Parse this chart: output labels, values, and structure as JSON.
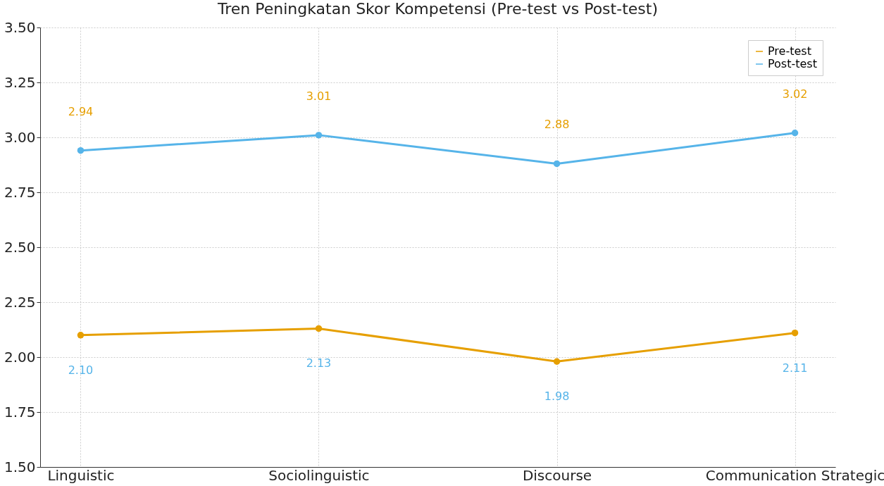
{
  "chart_data": {
    "type": "line",
    "title": "Tren Peningkatan Skor Kompetensi (Pre-test vs Post-test)",
    "categories": [
      "Linguistic",
      "Sociolinguistic",
      "Discourse",
      "Communication Strategic"
    ],
    "series": [
      {
        "name": "Pre-test",
        "color": "#e69f00",
        "values": [
          2.1,
          2.13,
          1.98,
          2.11
        ],
        "value_labels": [
          "2.10",
          "2.13",
          "1.98",
          "2.11"
        ]
      },
      {
        "name": "Post-test",
        "color": "#56b4e9",
        "values": [
          2.94,
          3.01,
          2.88,
          3.02
        ],
        "value_labels": [
          "2.94",
          "3.01",
          "2.88",
          "3.02"
        ]
      }
    ],
    "ylim": [
      1.5,
      3.5
    ],
    "yticks": [
      {
        "value": 1.5,
        "label": "1.50"
      },
      1.75,
      {
        "value": 2,
        "label": "2.00"
      },
      2.25,
      {
        "value": 2.5,
        "label": "2.50"
      },
      2.75,
      {
        "value": 3,
        "label": "3.00"
      },
      3.25,
      {
        "value": 3.5,
        "label": "3.50"
      }
    ],
    "grid": true,
    "legend": "top right",
    "marker": "circle",
    "line_style": "solid"
  }
}
